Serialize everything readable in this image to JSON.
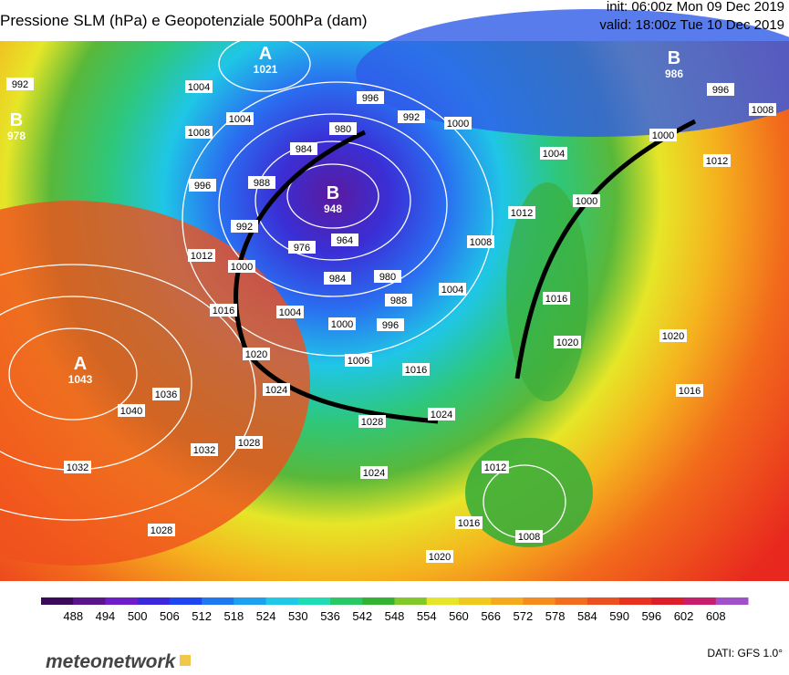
{
  "header": {
    "title": "Pressione SLM (hPa) e Geopotenziale 500hPa (dam)",
    "init": "init: 06:00z Mon 09 Dec 2019",
    "valid": "valid: 18:00z Tue 10 Dec 2019"
  },
  "centers": [
    {
      "label": "A",
      "value": "1021"
    },
    {
      "label": "B",
      "value": "948"
    },
    {
      "label": "A",
      "value": "1043"
    },
    {
      "label": "B",
      "value": "986"
    },
    {
      "label": "B",
      "value": "978"
    }
  ],
  "isobar_labels": [
    "992",
    "1004",
    "1008",
    "1004",
    "996",
    "988",
    "984",
    "980",
    "996",
    "992",
    "1000",
    "1004",
    "1000",
    "996",
    "1008",
    "1012",
    "1000",
    "1012",
    "1008",
    "1012",
    "992",
    "976",
    "964",
    "984",
    "980",
    "988",
    "996",
    "1000",
    "1004",
    "1000",
    "1016",
    "1020",
    "1006",
    "1016",
    "1004",
    "1016",
    "1020",
    "1020",
    "1016",
    "1024",
    "1028",
    "1024",
    "1040",
    "1036",
    "1032",
    "1028",
    "1032",
    "1024",
    "1012",
    "1016",
    "1008",
    "1020",
    "1028"
  ],
  "colorbar": {
    "ticks": [
      488,
      494,
      500,
      506,
      512,
      518,
      524,
      530,
      536,
      542,
      548,
      554,
      560,
      566,
      572,
      578,
      584,
      590,
      596,
      602,
      608
    ]
  },
  "footer": {
    "logo": "meteonetwork",
    "source": "DATI: GFS 1.0°"
  }
}
